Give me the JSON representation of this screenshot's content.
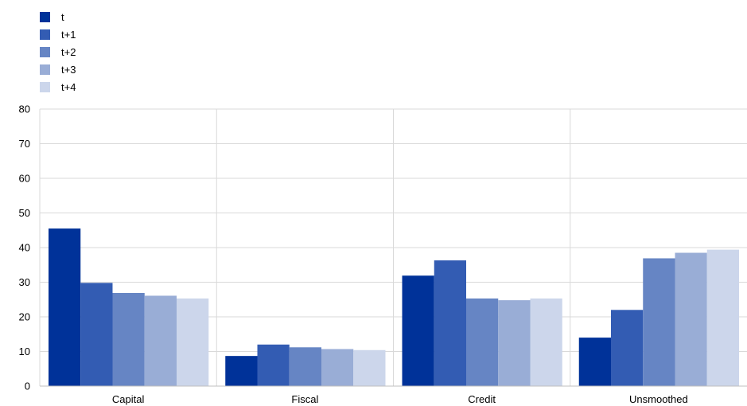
{
  "chart_data": {
    "type": "bar",
    "categories": [
      "Capital",
      "Fiscal",
      "Credit",
      "Unsmoothed"
    ],
    "series": [
      {
        "name": "t",
        "color": "#003299",
        "values": [
          45.5,
          8.7,
          31.9,
          14.0
        ]
      },
      {
        "name": "t+1",
        "color": "#335cb3",
        "values": [
          29.8,
          12.0,
          36.3,
          22.0
        ]
      },
      {
        "name": "t+2",
        "color": "#6685c4",
        "values": [
          26.9,
          11.2,
          25.3,
          36.9
        ]
      },
      {
        "name": "t+3",
        "color": "#99add6",
        "values": [
          26.1,
          10.7,
          24.8,
          38.5
        ]
      },
      {
        "name": "t+4",
        "color": "#ccd6eb",
        "values": [
          25.3,
          10.4,
          25.3,
          39.4
        ]
      }
    ],
    "y_ticks": [
      "0",
      "10",
      "20",
      "30",
      "40",
      "50",
      "60",
      "70",
      "80"
    ],
    "ylim": [
      0,
      80
    ],
    "grid": true,
    "legend_position": "top-left"
  }
}
